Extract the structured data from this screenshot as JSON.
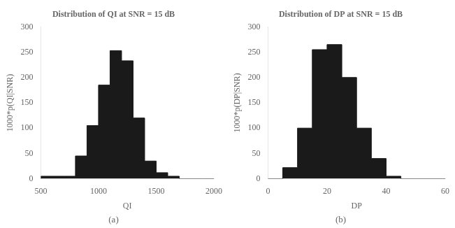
{
  "chart_data": [
    {
      "type": "histogram",
      "title": "Distribution of QI at SNR = 15 dB",
      "x_label": "QI",
      "y_label": "1000*p(QI|SNR)",
      "annotations": [
        "(a)"
      ],
      "bins": [
        500,
        700,
        800,
        900,
        1000,
        1100,
        1200,
        1300,
        1400,
        1500,
        1600,
        1700,
        1800,
        1900,
        2000
      ],
      "values": [
        0,
        5,
        5,
        45,
        105,
        185,
        253,
        233,
        120,
        35,
        12,
        5,
        0,
        0
      ],
      "color": "#1a1a1a",
      "xlim": [
        500,
        2000
      ],
      "ylim": [
        0,
        300
      ],
      "xticks": [
        500,
        1000,
        1500,
        2000
      ],
      "yticks": [
        0,
        50,
        100,
        150,
        200,
        250,
        300
      ],
      "grid": false
    },
    {
      "type": "histogram",
      "title": "Distribution of DP at SNR = 15 dB",
      "x_label": "DP",
      "y_label": "1000*p(DP|SNR)",
      "annotations": [
        "(b)"
      ],
      "bins": [
        0,
        5,
        10,
        15,
        20,
        25,
        30,
        35,
        40,
        45,
        50,
        60
      ],
      "values": [
        0,
        0,
        22,
        100,
        255,
        265,
        200,
        100,
        40,
        5,
        0
      ],
      "color": "#1a1a1a",
      "xlim": [
        0,
        60
      ],
      "ylim": [
        0,
        300
      ],
      "xticks": [
        0,
        20,
        40,
        60
      ],
      "yticks": [
        0,
        50,
        100,
        150,
        200,
        250,
        300
      ],
      "grid": false
    }
  ]
}
